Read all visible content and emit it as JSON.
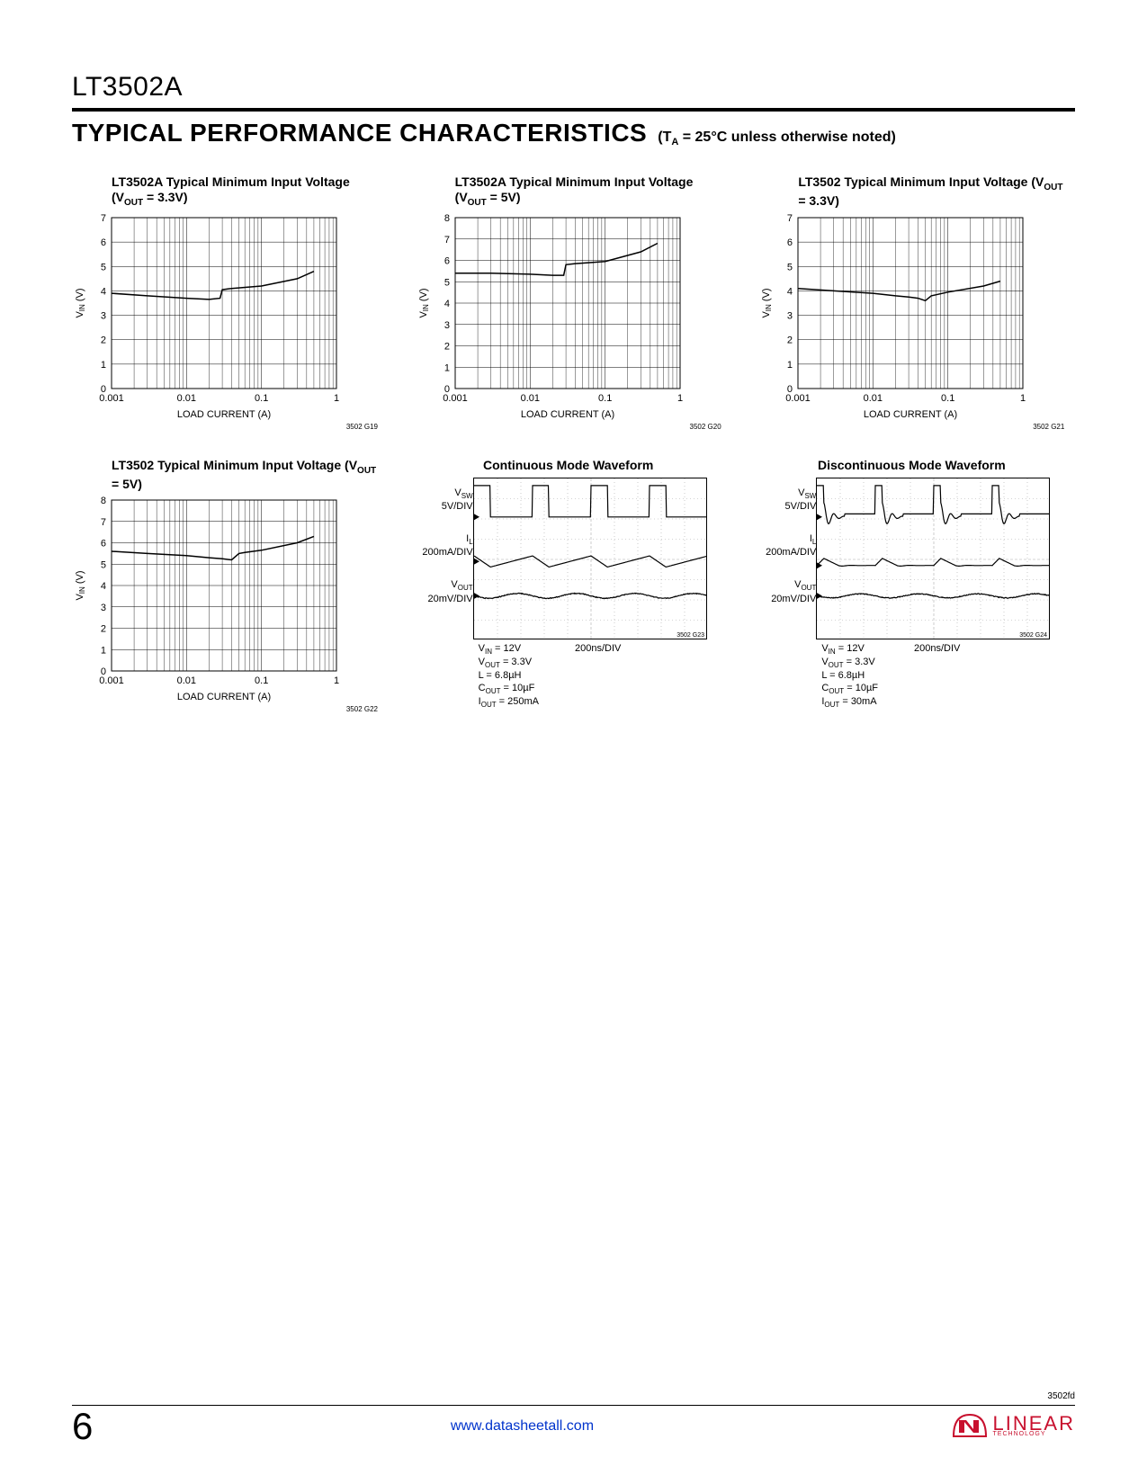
{
  "header": {
    "part_number": "LT3502A"
  },
  "section": {
    "title": "TYPICAL PERFORMANCE CHARACTERISTICS",
    "condition_prefix": "(T",
    "condition_sub": "A",
    "condition_rest": " = 25°C unless otherwise noted)"
  },
  "charts": [
    {
      "title_pre": "LT3502A Typical Minimum Input Voltage (V",
      "title_sub": "OUT",
      "title_post": " = 3.3V)",
      "ref": "3502 G19",
      "ylabel_pre": "V",
      "ylabel_sub": "IN",
      "ylabel_post": " (V)",
      "xlabel": "LOAD CURRENT (A)",
      "ylim": [
        0,
        7
      ],
      "ytick_step": 1,
      "xticks": [
        0.001,
        0.01,
        0.1,
        1
      ],
      "xtick_labels": [
        "0.001",
        "0.01",
        "0.1",
        "1"
      ],
      "data": [
        [
          0.001,
          3.9
        ],
        [
          0.003,
          3.8
        ],
        [
          0.01,
          3.7
        ],
        [
          0.02,
          3.65
        ],
        [
          0.028,
          3.7
        ],
        [
          0.03,
          4.05
        ],
        [
          0.04,
          4.1
        ],
        [
          0.1,
          4.2
        ],
        [
          0.3,
          4.5
        ],
        [
          0.5,
          4.8
        ]
      ],
      "line_color": "#000000",
      "line_width": 1.5,
      "grid_color": "#000000",
      "background": "#ffffff"
    },
    {
      "title_pre": "LT3502A Typical Minimum Input Voltage (V",
      "title_sub": "OUT",
      "title_post": " = 5V)",
      "ref": "3502 G20",
      "ylabel_pre": "V",
      "ylabel_sub": "IN",
      "ylabel_post": " (V)",
      "xlabel": "LOAD CURRENT (A)",
      "ylim": [
        0,
        8
      ],
      "ytick_step": 1,
      "xticks": [
        0.001,
        0.01,
        0.1,
        1
      ],
      "xtick_labels": [
        "0.001",
        "0.01",
        "0.1",
        "1"
      ],
      "data": [
        [
          0.001,
          5.4
        ],
        [
          0.003,
          5.4
        ],
        [
          0.01,
          5.35
        ],
        [
          0.02,
          5.3
        ],
        [
          0.028,
          5.3
        ],
        [
          0.03,
          5.8
        ],
        [
          0.04,
          5.85
        ],
        [
          0.1,
          5.95
        ],
        [
          0.3,
          6.4
        ],
        [
          0.5,
          6.8
        ]
      ],
      "line_color": "#000000",
      "line_width": 1.5,
      "grid_color": "#000000",
      "background": "#ffffff"
    },
    {
      "title_pre": "LT3502 Typical Minimum Input Voltage (V",
      "title_sub": "OUT",
      "title_post": " = 3.3V)",
      "ref": "3502 G21",
      "ylabel_pre": "V",
      "ylabel_sub": "IN",
      "ylabel_post": " (V)",
      "xlabel": "LOAD CURRENT (A)",
      "ylim": [
        0,
        7
      ],
      "ytick_step": 1,
      "xticks": [
        0.001,
        0.01,
        0.1,
        1
      ],
      "xtick_labels": [
        "0.001",
        "0.01",
        "0.1",
        "1"
      ],
      "data": [
        [
          0.001,
          4.1
        ],
        [
          0.003,
          4.0
        ],
        [
          0.01,
          3.9
        ],
        [
          0.02,
          3.8
        ],
        [
          0.03,
          3.75
        ],
        [
          0.04,
          3.7
        ],
        [
          0.05,
          3.6
        ],
        [
          0.06,
          3.8
        ],
        [
          0.1,
          3.95
        ],
        [
          0.3,
          4.2
        ],
        [
          0.5,
          4.4
        ]
      ],
      "line_color": "#000000",
      "line_width": 1.5,
      "grid_color": "#000000",
      "background": "#ffffff"
    },
    {
      "title_pre": "LT3502 Typical Minimum Input Voltage (V",
      "title_sub": "OUT",
      "title_post": " = 5V)",
      "ref": "3502 G22",
      "ylabel_pre": "V",
      "ylabel_sub": "IN",
      "ylabel_post": " (V)",
      "xlabel": "LOAD CURRENT (A)",
      "ylim": [
        0,
        8
      ],
      "ytick_step": 1,
      "xticks": [
        0.001,
        0.01,
        0.1,
        1
      ],
      "xtick_labels": [
        "0.001",
        "0.01",
        "0.1",
        "1"
      ],
      "data": [
        [
          0.001,
          5.6
        ],
        [
          0.003,
          5.5
        ],
        [
          0.01,
          5.4
        ],
        [
          0.02,
          5.3
        ],
        [
          0.03,
          5.25
        ],
        [
          0.04,
          5.2
        ],
        [
          0.05,
          5.5
        ],
        [
          0.06,
          5.55
        ],
        [
          0.1,
          5.65
        ],
        [
          0.3,
          6.0
        ],
        [
          0.5,
          6.3
        ]
      ],
      "line_color": "#000000",
      "line_width": 1.5,
      "grid_color": "#000000",
      "background": "#ffffff"
    }
  ],
  "scopes": [
    {
      "title": "Continuous Mode Waveform",
      "ref": "3502 G23",
      "labels": [
        {
          "pre": "V",
          "sub": "SW",
          "post": "",
          "div": "5V/DIV"
        },
        {
          "pre": "I",
          "sub": "L",
          "post": "",
          "div": "200mA/DIV"
        },
        {
          "pre": "V",
          "sub": "OUT",
          "post": "",
          "div": "20mV/DIV"
        }
      ],
      "timebase": "200ns/DIV",
      "conditions": [
        "V<sub>IN</sub> = 12V",
        "V<sub>OUT</sub> = 3.3V",
        "L = 6.8µH",
        "C<sub>OUT</sub> = 10µF",
        "I<sub>OUT</sub> = 250mA"
      ],
      "grid_divs_x": 10,
      "grid_divs_y": 8,
      "line_color": "#000000",
      "grid_color": "#aaaaaa",
      "background": "#ffffff",
      "waves": [
        {
          "baseline": 1.9,
          "type": "square",
          "period": 2.5,
          "duty": 0.28,
          "high": 0.35,
          "low": 1.9
        },
        {
          "baseline": 4.1,
          "type": "saw",
          "period": 2.5,
          "amp": 0.55
        },
        {
          "baseline": 5.8,
          "type": "ripple",
          "period": 2.5,
          "amp": 0.12
        }
      ]
    },
    {
      "title": "Discontinuous Mode Waveform",
      "ref": "3502 G24",
      "labels": [
        {
          "pre": "V",
          "sub": "SW",
          "post": "",
          "div": "5V/DIV"
        },
        {
          "pre": "I",
          "sub": "L",
          "post": "",
          "div": "200mA/DIV"
        },
        {
          "pre": "V",
          "sub": "OUT",
          "post": "",
          "div": "20mV/DIV"
        }
      ],
      "timebase": "200ns/DIV",
      "conditions": [
        "V<sub>IN</sub> = 12V",
        "V<sub>OUT</sub> = 3.3V",
        "L = 6.8µH",
        "C<sub>OUT</sub> = 10µF",
        "I<sub>OUT</sub> = 30mA"
      ],
      "grid_divs_x": 10,
      "grid_divs_y": 8,
      "line_color": "#000000",
      "grid_color": "#aaaaaa",
      "background": "#ffffff",
      "waves": [
        {
          "baseline": 1.9,
          "type": "dcm_sw",
          "period": 2.5,
          "duty": 0.12,
          "high": 0.35,
          "low": 1.9,
          "ring_amp": 0.7,
          "ring_cycles": 2
        },
        {
          "baseline": 4.3,
          "type": "dcm_il",
          "period": 2.5,
          "amp": 0.35
        },
        {
          "baseline": 5.8,
          "type": "ripple",
          "period": 2.5,
          "amp": 0.1
        }
      ]
    }
  ],
  "footer": {
    "doc_rev": "3502fd",
    "page_num": "6",
    "link": "www.datasheetall.com",
    "logo_text": "LINEAR",
    "logo_sub": "TECHNOLOGY",
    "logo_color": "#c8102e"
  }
}
